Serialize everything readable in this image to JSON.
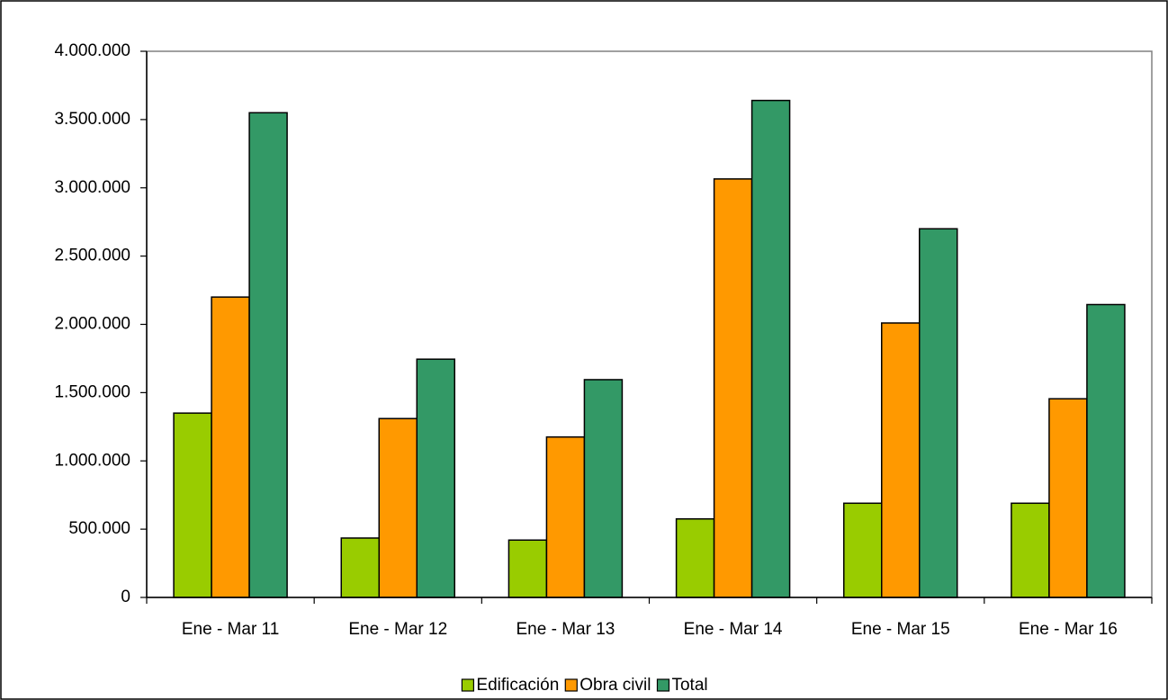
{
  "chart_data": {
    "type": "bar",
    "categories": [
      "Ene - Mar 11",
      "Ene - Mar 12",
      "Ene - Mar 13",
      "Ene - Mar 14",
      "Ene - Mar 15",
      "Ene - Mar 16"
    ],
    "series": [
      {
        "name": "Edificación",
        "color": "#99cc00",
        "values": [
          1350000,
          435000,
          420000,
          575000,
          690000,
          690000
        ]
      },
      {
        "name": "Obra civil",
        "color": "#ff9900",
        "values": [
          2200000,
          1310000,
          1175000,
          3065000,
          2010000,
          1455000
        ]
      },
      {
        "name": "Total",
        "color": "#339966",
        "values": [
          3550000,
          1745000,
          1595000,
          3640000,
          2700000,
          2145000
        ]
      }
    ],
    "ylim": [
      0,
      4000000
    ],
    "yticks": [
      0,
      {
        "value": 500000,
        "label": "500.000"
      },
      {
        "value": 1000000,
        "label": "1.000.000"
      },
      {
        "value": 1500000,
        "label": "1.500.000"
      },
      {
        "value": 2000000,
        "label": "2.000.000"
      },
      {
        "value": 2500000,
        "label": "2.500.000"
      },
      {
        "value": 3000000,
        "label": "3.000.000"
      },
      {
        "value": 3500000,
        "label": "3.500.000"
      },
      {
        "value": 4000000,
        "label": "4.000.000"
      }
    ],
    "grid": false,
    "legend": "bottom"
  }
}
